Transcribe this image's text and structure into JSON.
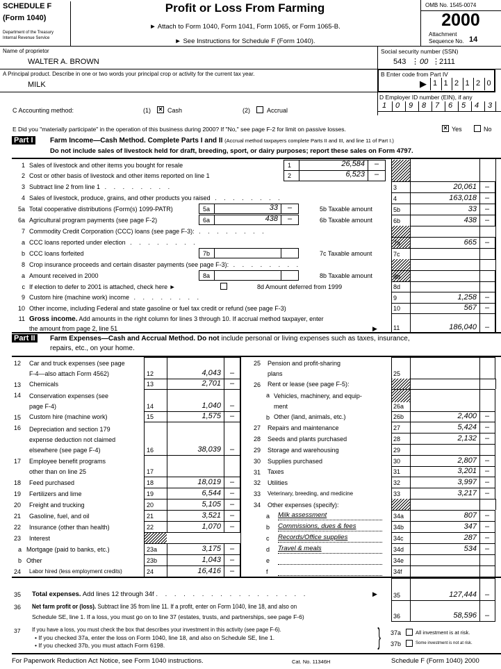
{
  "header": {
    "schedule": "SCHEDULE F",
    "form": "(Form 1040)",
    "dept1": "Department of the Treasury",
    "dept2": "Internal Revenue Service",
    "title": "Profit or Loss From Farming",
    "attach": "► Attach to Form 1040, Form 1041, Form 1065, or Form 1065-B.",
    "instructions": "► See Instructions for Schedule F (Form 1040).",
    "omb": "OMB No. 1545-0074",
    "year": "2000",
    "attachment": "Attachment",
    "sequence": "Sequence No.",
    "sequence_no": "14"
  },
  "proprietor": {
    "label": "Name of proprietor",
    "value": "WALTER A. BROWN"
  },
  "ssn": {
    "label": "Social security number (SSN)",
    "parts": [
      "543",
      "00",
      "2111"
    ]
  },
  "principal_product": {
    "label": "A  Principal product. Describe in one or two words your principal crop or activity for the current tax year.",
    "value": "MILK"
  },
  "code": {
    "label": "B  Enter code from Part IV",
    "digits": [
      "1",
      "1",
      "2",
      "1",
      "2",
      "0"
    ]
  },
  "ein": {
    "label": "D  Employer ID number (EIN), if any",
    "digits": [
      "1",
      "0",
      "9",
      "8",
      "7",
      "6",
      "5",
      "4",
      "3"
    ]
  },
  "accounting": {
    "label": "C  Accounting method:",
    "opt1_num": "(1)",
    "opt1": "Cash",
    "opt1_checked": true,
    "opt2_num": "(2)",
    "opt2": "Accrual",
    "opt2_checked": false
  },
  "participate": {
    "label": "E  Did you \"materially participate\" in the operation of this business during 2000? If \"No,\" see page F-2 for limit on passive losses.",
    "yes": "Yes",
    "no": "No",
    "yes_checked": true
  },
  "part1": {
    "tag": "Part I",
    "title": "Farm Income—Cash Method. Complete Parts I and II",
    "note": "(Accrual method taxpayers complete Parts II and III, and line 11 of Part I.)",
    "warning": "Do not include sales of livestock held for draft, breeding, sport, or dairy purposes; report these sales on Form 4797.",
    "lines": [
      {
        "n": "1",
        "label": "Sales of livestock and other items you bought for resale",
        "box": "1",
        "box_amt": "26,584",
        "box_c": "–"
      },
      {
        "n": "2",
        "label": "Cost or other basis of livestock and other items reported on line 1",
        "box": "2",
        "box_amt": "6,523",
        "box_c": "–"
      },
      {
        "n": "3",
        "label": "Subtract line 2 from line 1",
        "col": "3",
        "amt": "20,061",
        "c": "–"
      },
      {
        "n": "4",
        "label": "Sales of livestock, produce, grains, and other products you raised",
        "col": "4",
        "amt": "163,018",
        "c": "–"
      },
      {
        "n": "5a",
        "label": "Total cooperative distributions (Form(s) 1099-PATR)",
        "box": "5a",
        "box_amt": "33",
        "box_c": "–",
        "mid": "5b Taxable amount",
        "col": "5b",
        "amt": "33",
        "c": "–"
      },
      {
        "n": "6a",
        "label": "Agricultural program payments (see page F-2)",
        "box": "6a",
        "box_amt": "438",
        "box_c": "–",
        "mid": "6b Taxable amount",
        "col": "6b",
        "amt": "438",
        "c": "–"
      },
      {
        "n": "7",
        "label": "Commodity Credit Corporation (CCC) loans (see page F-3):"
      },
      {
        "n": "a",
        "label": "CCC loans reported under election",
        "col": "7a",
        "amt": "665",
        "c": "–"
      },
      {
        "n": "b",
        "label": "CCC loans forfeited",
        "box": "7b",
        "box_amt": "",
        "box_c": "",
        "mid": "7c Taxable amount",
        "col": "7c",
        "amt": "",
        "c": ""
      },
      {
        "n": "8",
        "label": "Crop insurance proceeds and certain disaster payments (see page F-3):"
      },
      {
        "n": "a",
        "label": "Amount received in 2000",
        "box": "8a",
        "box_amt": "",
        "box_c": "",
        "mid": "8b Taxable amount",
        "col": "8b",
        "amt": "",
        "c": ""
      },
      {
        "n": "c",
        "label": "If election to defer to 2001 is attached, check here ►",
        "mid": "8d  Amount deferred from 1999",
        "col": "8d",
        "amt": "",
        "c": ""
      },
      {
        "n": "9",
        "label": "Custom hire (machine work) income",
        "col": "9",
        "amt": "1,258",
        "c": "–"
      },
      {
        "n": "10",
        "label": "Other income, including Federal and state gasoline or fuel tax credit or refund (see page F-3)",
        "col": "10",
        "amt": "567",
        "c": "–"
      },
      {
        "n": "11",
        "label_bold": "Gross income.",
        "label": "Add amounts in the right column for lines 3 through 10. If accrual method taxpayer, enter",
        "label2": "the amount from page 2, line 51",
        "col": "11",
        "amt": "186,040",
        "c": "–"
      }
    ]
  },
  "part2": {
    "tag": "Part II",
    "title": "Farm Expenses—Cash and Accrual Method.",
    "title_bold2": "Do not",
    "title_rest": "include personal or living expenses such as taxes, insurance,",
    "title_line2": "repairs, etc., on your home.",
    "left": [
      {
        "n": "12",
        "label": "Car and truck expenses (see page",
        "label2": "F-4—also attach Form 4562)",
        "col": "12",
        "amt": "4,043",
        "c": "–"
      },
      {
        "n": "13",
        "label": "Chemicals",
        "col": "13",
        "amt": "2,701",
        "c": "–"
      },
      {
        "n": "14",
        "label": "Conservation expenses (see",
        "label2": "page F-4)",
        "col": "14",
        "amt": "1,040",
        "c": "–"
      },
      {
        "n": "15",
        "label": "Custom hire (machine work)",
        "col": "15",
        "amt": "1,575",
        "c": "–"
      },
      {
        "n": "16",
        "label": "Depreciation and section 179",
        "label2": "expense deduction not claimed",
        "label3": "elsewhere (see page F-4)",
        "col": "16",
        "amt": "38,039",
        "c": "–"
      },
      {
        "n": "17",
        "label": "Employee benefit programs",
        "label2": "other than on line 25",
        "col": "17",
        "amt": "",
        "c": ""
      },
      {
        "n": "18",
        "label": "Feed purchased",
        "col": "18",
        "amt": "18,019",
        "c": "–"
      },
      {
        "n": "19",
        "label": "Fertilizers and lime",
        "col": "19",
        "amt": "6,544",
        "c": "–"
      },
      {
        "n": "20",
        "label": "Freight and trucking",
        "col": "20",
        "amt": "5,105",
        "c": "–"
      },
      {
        "n": "21",
        "label": "Gasoline, fuel, and oil",
        "col": "21",
        "amt": "3,521",
        "c": "–"
      },
      {
        "n": "22",
        "label": "Insurance (other than health)",
        "col": "22",
        "amt": "1,070",
        "c": "–"
      },
      {
        "n": "23",
        "label": "Interest"
      },
      {
        "n": "a",
        "label": "Mortgage (paid to banks, etc.)",
        "col": "23a",
        "amt": "3,175",
        "c": "–"
      },
      {
        "n": "b",
        "label": "Other",
        "col": "23b",
        "amt": "1,043",
        "c": "–"
      },
      {
        "n": "24",
        "label": "Labor hired (less employment credits)",
        "col": "24",
        "amt": "16,416",
        "c": "–"
      }
    ],
    "right": [
      {
        "n": "25",
        "label": "Pension and profit-sharing",
        "label2": "plans",
        "col": "25",
        "amt": "",
        "c": ""
      },
      {
        "n": "26",
        "label": "Rent or lease (see page F-5):"
      },
      {
        "n": "a",
        "label": "Vehicles, machinery, and equip-",
        "label2": "ment",
        "col": "26a",
        "amt": "",
        "c": ""
      },
      {
        "n": "b",
        "label": "Other (land, animals, etc.)",
        "col": "26b",
        "amt": "2,400",
        "c": "–"
      },
      {
        "n": "27",
        "label": "Repairs and maintenance",
        "col": "27",
        "amt": "5,424",
        "c": "–"
      },
      {
        "n": "28",
        "label": "Seeds and plants purchased",
        "col": "28",
        "amt": "2,132",
        "c": "–"
      },
      {
        "n": "29",
        "label": "Storage and warehousing",
        "col": "29",
        "amt": "",
        "c": ""
      },
      {
        "n": "30",
        "label": "Supplies purchased",
        "col": "30",
        "amt": "2,807",
        "c": "–"
      },
      {
        "n": "31",
        "label": "Taxes",
        "col": "31",
        "amt": "3,201",
        "c": "–"
      },
      {
        "n": "32",
        "label": "Utilities",
        "col": "32",
        "amt": "3,997",
        "c": "–"
      },
      {
        "n": "33",
        "label": "Veterinary, breeding, and medicine",
        "col": "33",
        "amt": "3,217",
        "c": "–"
      },
      {
        "n": "34",
        "label": "Other expenses (specify):"
      },
      {
        "n": "a",
        "fill": "Milk assessment",
        "col": "34a",
        "amt": "807",
        "c": "–"
      },
      {
        "n": "b",
        "fill": "Commissions, dues & fees",
        "col": "34b",
        "amt": "347",
        "c": "–"
      },
      {
        "n": "c",
        "fill": "Records/Office supplies",
        "col": "34c",
        "amt": "287",
        "c": "–"
      },
      {
        "n": "d",
        "fill": "Travel & meals",
        "col": "34d",
        "amt": "534",
        "c": "–"
      },
      {
        "n": "e",
        "fill": "",
        "col": "34e",
        "amt": "",
        "c": ""
      },
      {
        "n": "f",
        "fill": "",
        "col": "34f",
        "amt": "",
        "c": ""
      }
    ]
  },
  "line35": {
    "n": "35",
    "bold": "Total expenses.",
    "label": "Add lines 12 through 34f",
    "col": "35",
    "amt": "127,444",
    "c": "–"
  },
  "line36": {
    "n": "36",
    "bold": "Net farm profit or (loss).",
    "label": "Subtract line 35 from line 11. If a profit, enter on Form 1040, line 18, and also on",
    "label2": "Schedule SE, line 1. If a loss, you must go on to line 37 (estates, trusts, and partnerships, see page F-6)",
    "col": "36",
    "amt": "58,596",
    "c": "–"
  },
  "line37": {
    "n": "37",
    "label": "If you have a loss, you must check the box that describes your investment in this activity (see page F-6).",
    "b1": "• If you checked 37a, enter the loss on Form 1040, line 18, and also on Schedule SE, line 1.",
    "b2": "• If you checked 37b, you must attach Form 6198.",
    "a_num": "37a",
    "a_label": "All investment is at risk.",
    "b_num": "37b",
    "b_label": "Some investment is not at risk."
  },
  "footer": {
    "left": "For Paperwork Reduction Act Notice, see Form 1040 instructions.",
    "cat": "Cat. No. 11346H",
    "right": "Schedule F (Form 1040) 2000"
  }
}
